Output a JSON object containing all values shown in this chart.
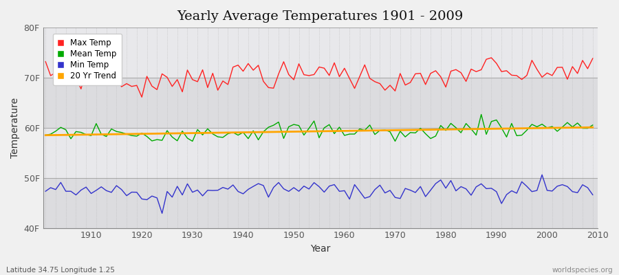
{
  "title": "Yearly Average Temperatures 1901 - 2009",
  "xlabel": "Year",
  "ylabel": "Temperature",
  "bottom_left_label": "Latitude 34.75 Longitude 1.25",
  "bottom_right_label": "worldspecies.org",
  "year_start": 1901,
  "year_end": 2009,
  "ylim": [
    40,
    80
  ],
  "yticks": [
    40,
    50,
    60,
    70,
    80
  ],
  "ytick_labels": [
    "40F",
    "50F",
    "60F",
    "70F",
    "80F"
  ],
  "background_color": "#f0f0f0",
  "plot_bg_color": "#e8e8eb",
  "band_colors": [
    "#dcdcdf",
    "#e8e8eb"
  ],
  "legend_labels": [
    "Max Temp",
    "Mean Temp",
    "Min Temp",
    "20 Yr Trend"
  ],
  "legend_colors": [
    "#ff0000",
    "#00aa00",
    "#0000ff",
    "#ffa500"
  ],
  "max_temp_color": "#ff2222",
  "mean_temp_color": "#00aa00",
  "min_temp_color": "#3333cc",
  "trend_color": "#ffa500",
  "grid_color": "#bbbbbb",
  "title_fontsize": 14,
  "xticks": [
    1910,
    1920,
    1930,
    1940,
    1950,
    1960,
    1970,
    1980,
    1990,
    2000,
    2010
  ]
}
